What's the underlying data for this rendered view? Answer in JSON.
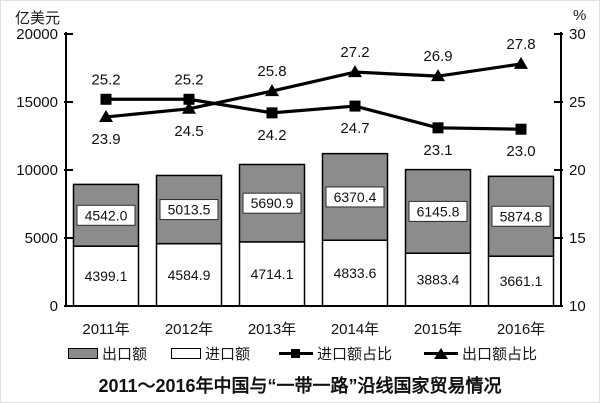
{
  "chart_data": {
    "type": "combo-stacked-bar-line",
    "title": "2011～2016年中国与“一带一路”沿线国家贸易情况",
    "left_axis": {
      "unit": "亿美元",
      "ticks": [
        0,
        5000,
        10000,
        15000,
        20000
      ],
      "range": [
        0,
        20000
      ]
    },
    "right_axis": {
      "unit": "%",
      "ticks": [
        10,
        15,
        20,
        25,
        30
      ],
      "range": [
        10,
        30
      ]
    },
    "categories": [
      "2011年",
      "2012年",
      "2013年",
      "2014年",
      "2015年",
      "2016年"
    ],
    "bar_series": [
      {
        "key": "import",
        "name": "进口额",
        "fill": "#ffffff",
        "values": [
          4399.1,
          4584.9,
          4714.1,
          4833.6,
          3883.4,
          3661.1
        ]
      },
      {
        "key": "export",
        "name": "出口额",
        "fill": "#8c8c8c",
        "values": [
          4542.0,
          5013.5,
          5690.9,
          6370.4,
          6145.8,
          5874.8
        ]
      }
    ],
    "line_series": [
      {
        "key": "import-share",
        "name": "进口额占比",
        "marker": "square",
        "color": "#000000",
        "values": [
          25.2,
          25.2,
          24.2,
          24.7,
          23.1,
          23.0
        ],
        "label_side": [
          "above",
          "above",
          "below",
          "below",
          "below",
          "below"
        ]
      },
      {
        "key": "export-share",
        "name": "出口额占比",
        "marker": "triangle",
        "color": "#000000",
        "values": [
          23.9,
          24.5,
          25.8,
          27.2,
          26.9,
          27.8
        ],
        "label_side": [
          "below",
          "below",
          "above",
          "above",
          "above",
          "above"
        ]
      }
    ],
    "legend": [
      {
        "label": "出口额",
        "swatch": "gray-rect"
      },
      {
        "label": "进口额",
        "swatch": "white-rect"
      },
      {
        "label": "进口额占比",
        "swatch": "line-square"
      },
      {
        "label": "出口额占比",
        "swatch": "line-triangle"
      }
    ]
  }
}
